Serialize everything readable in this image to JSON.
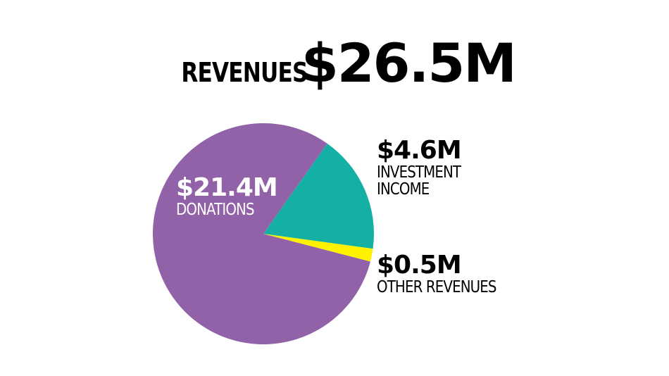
{
  "headline": {
    "caption": "REVENUES",
    "total": "$26.5M"
  },
  "chart_data": {
    "type": "pie",
    "unit": "$M",
    "slices": [
      {
        "label": "DONATIONS",
        "amount_label": "$21.4M",
        "value": 21.4,
        "color": "#9262A8"
      },
      {
        "label": "INVESTMENT INCOME",
        "amount_label": "$4.6M",
        "value": 4.6,
        "color": "#14B0A5"
      },
      {
        "label": "OTHER REVENUES",
        "amount_label": "$0.5M",
        "value": 0.5,
        "color": "#FFF200"
      }
    ],
    "total_label": "$26.5M"
  },
  "labels": {
    "donations": {
      "amount": "$21.4M",
      "name": "DONATIONS"
    },
    "investment": {
      "amount": "$4.6M",
      "name_line1": "INVESTMENT",
      "name_line2": "INCOME"
    },
    "other": {
      "amount": "$0.5M",
      "name": "OTHER REVENUES"
    }
  }
}
